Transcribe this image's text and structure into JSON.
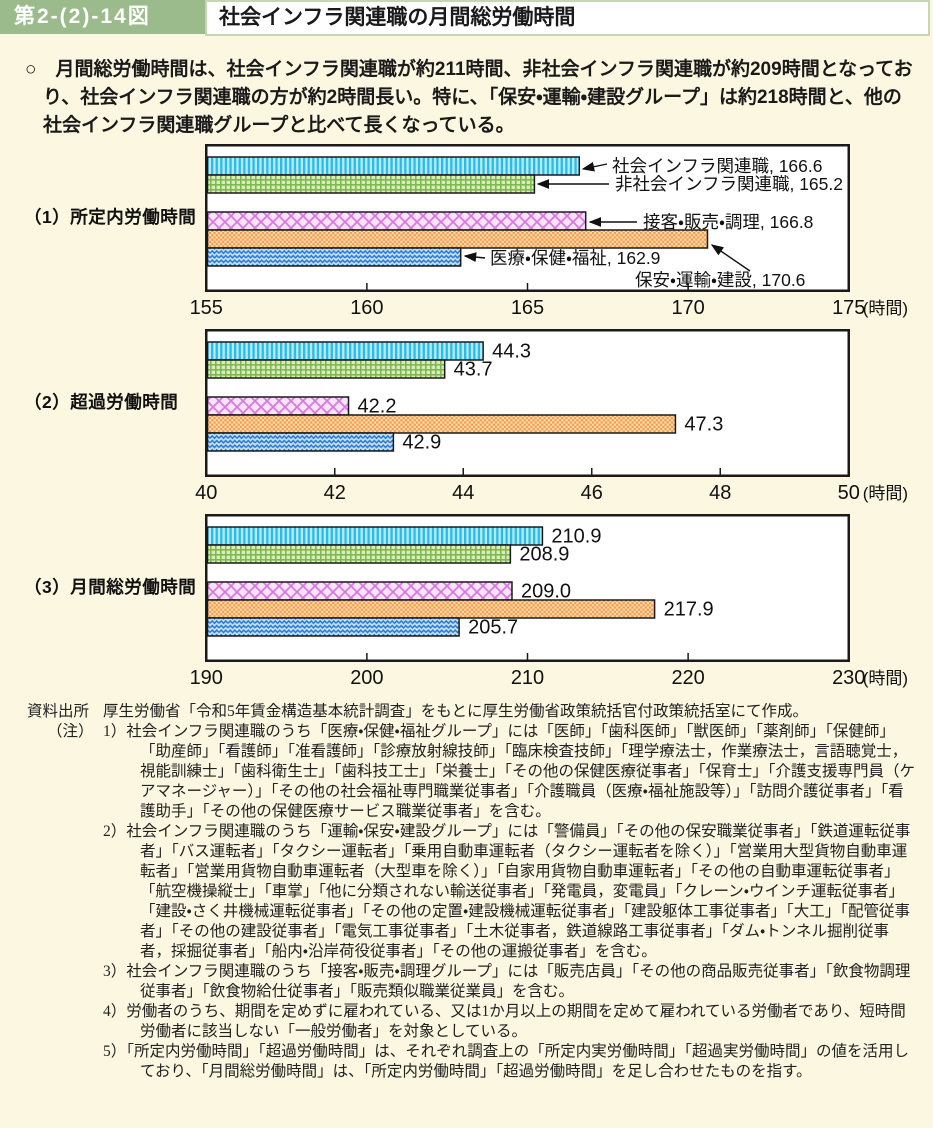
{
  "page": {
    "background_color": "#FBF7E0"
  },
  "header": {
    "figure_label": "第2-(2)-14図",
    "title": "社会インフラ関連職の月間総労働時間",
    "badge_color": "#9CBB8C",
    "title_border_color": "#C3D7B3"
  },
  "intro": {
    "text": "○　月間総労働時間は、社会インフラ関連職が約211時間、非社会インフラ関連職が約209時間となっており、社会インフラ関連職の方が約2時間長い。特に、「保安・運輸・建設グループ」は約218時間と、他の社会インフラ関連職グループと比べて長くなっている。"
  },
  "bar_styles": [
    {
      "name": "社会インフラ関連職",
      "pattern": "vstripe",
      "base": "#B5EBF9",
      "accent": "#28BCE6"
    },
    {
      "name": "非社会インフラ関連職",
      "pattern": "grid",
      "base": "#D9EEB6",
      "accent": "#7FB755"
    },
    {
      "name": "接客・販売・調理",
      "pattern": "diamond",
      "base": "#FBE2FB",
      "accent": "#D779DF"
    },
    {
      "name": "保安・運輸・建設",
      "pattern": "checker",
      "base": "#FDDFAE",
      "accent": "#F2994E"
    },
    {
      "name": "医療・保健・福祉",
      "pattern": "zigzag",
      "base": "#BFE2F7",
      "accent": "#2F76CC"
    }
  ],
  "chart_data": [
    {
      "type": "bar",
      "orientation": "horizontal",
      "panel_label": "（1）所定内労働時間",
      "categories": [
        "社会インフラ関連職",
        "非社会インフラ関連職",
        "接客・販売・調理",
        "保安・運輸・建設",
        "医療・保健・福祉"
      ],
      "values": [
        166.6,
        165.2,
        166.8,
        170.6,
        162.9
      ],
      "xlim": [
        155,
        175
      ],
      "ticks": [
        155,
        160,
        165,
        170,
        175
      ],
      "unit": "(時間)",
      "value_labels": false,
      "annotations": [
        "社会インフラ関連職, 166.6",
        "非社会インフラ関連職, 165.2",
        "接客・販売・調理, 166.8",
        "保安・運輸・建設, 170.6",
        "医療・保健・福祉, 162.9"
      ]
    },
    {
      "type": "bar",
      "orientation": "horizontal",
      "panel_label": "（2）超過労働時間",
      "categories": [
        "社会インフラ関連職",
        "非社会インフラ関連職",
        "接客・販売・調理",
        "保安・運輸・建設",
        "医療・保健・福祉"
      ],
      "values": [
        44.3,
        43.7,
        42.2,
        47.3,
        42.9
      ],
      "value_texts": [
        "44.3",
        "43.7",
        "42.2",
        "47.3",
        "42.9"
      ],
      "xlim": [
        40,
        50
      ],
      "ticks": [
        40,
        42,
        44,
        46,
        48,
        50
      ],
      "unit": "(時間)",
      "value_labels": true
    },
    {
      "type": "bar",
      "orientation": "horizontal",
      "panel_label": "（3）月間総労働時間",
      "categories": [
        "社会インフラ関連職",
        "非社会インフラ関連職",
        "接客・販売・調理",
        "保安・運輸・建設",
        "医療・保健・福祉"
      ],
      "values": [
        210.9,
        208.9,
        209.0,
        217.9,
        205.7
      ],
      "value_texts": [
        "210.9",
        "208.9",
        "209.0",
        "217.9",
        "205.7"
      ],
      "xlim": [
        190,
        230
      ],
      "ticks": [
        190,
        200,
        210,
        220,
        230
      ],
      "unit": "(時間)",
      "value_labels": true
    }
  ],
  "notes": {
    "source_label": "資料出所",
    "source_text": "厚生労働省「令和5年賃金構造基本統計調査」をもとに厚生労働省政策統括官付政策統括室にて作成。",
    "note_label": "（注）",
    "items": [
      "1）社会インフラ関連職のうち「医療・保健・福祉グループ」には「医師」「歯科医師」「獣医師」「薬剤師」「保健師」「助産師」「看護師」「准看護師」「診療放射線技師」「臨床検査技師」「理学療法士，作業療法士，言語聴覚士，視能訓練士」「歯科衛生士」「歯科技工士」「栄養士」「その他の保健医療従事者」「保育士」「介護支援専門員（ケアマネージャー）」「その他の社会福祉専門職業従事者」「介護職員（医療・福祉施設等）」「訪問介護従事者」「看護助手」「その他の保健医療サービス職業従事者」を含む。",
      "2）社会インフラ関連職のうち「運輸・保安・建設グループ」には「警備員」「その他の保安職業従事者」「鉄道運転従事者」「バス運転者」「タクシー運転者」「乗用自動車運転者（タクシー運転者を除く）」「営業用大型貨物自動車運転者」「営業用貨物自動車運転者（大型車を除く）」「自家用貨物自動車運転者」「その他の自動車運転従事者」「航空機操縦士」「車掌」「他に分類されない輸送従事者」「発電員，変電員」「クレーン・ウインチ運転従事者」「建設・さく井機械運転従事者」「その他の定置・建設機械運転従事者」「建設躯体工事従事者」「大工」「配管従事者」「その他の建設従事者」「電気工事従事者」「土木従事者，鉄道線路工事従事者」「ダム・トンネル掘削従事者，採掘従事者」「船内・沿岸荷役従事者」「その他の運搬従事者」を含む。",
      "3）社会インフラ関連職のうち「接客・販売・調理グループ」には「販売店員」「その他の商品販売従事者」「飲食物調理従事者」「飲食物給仕従事者」「販売類似職業従業員」を含む。",
      "4）労働者のうち、期間を定めずに雇われている、又は1か月以上の期間を定めて雇われている労働者であり、短時間労働者に該当しない「一般労働者」を対象としている。",
      "5）「所定内労働時間」「超過労働時間」は、それぞれ調査上の「所定内実労働時間」「超過実労働時間」の値を活用しており、「月間総労働時間」は、「所定内労働時間」「超過労働時間」を足し合わせたものを指す。"
    ]
  }
}
